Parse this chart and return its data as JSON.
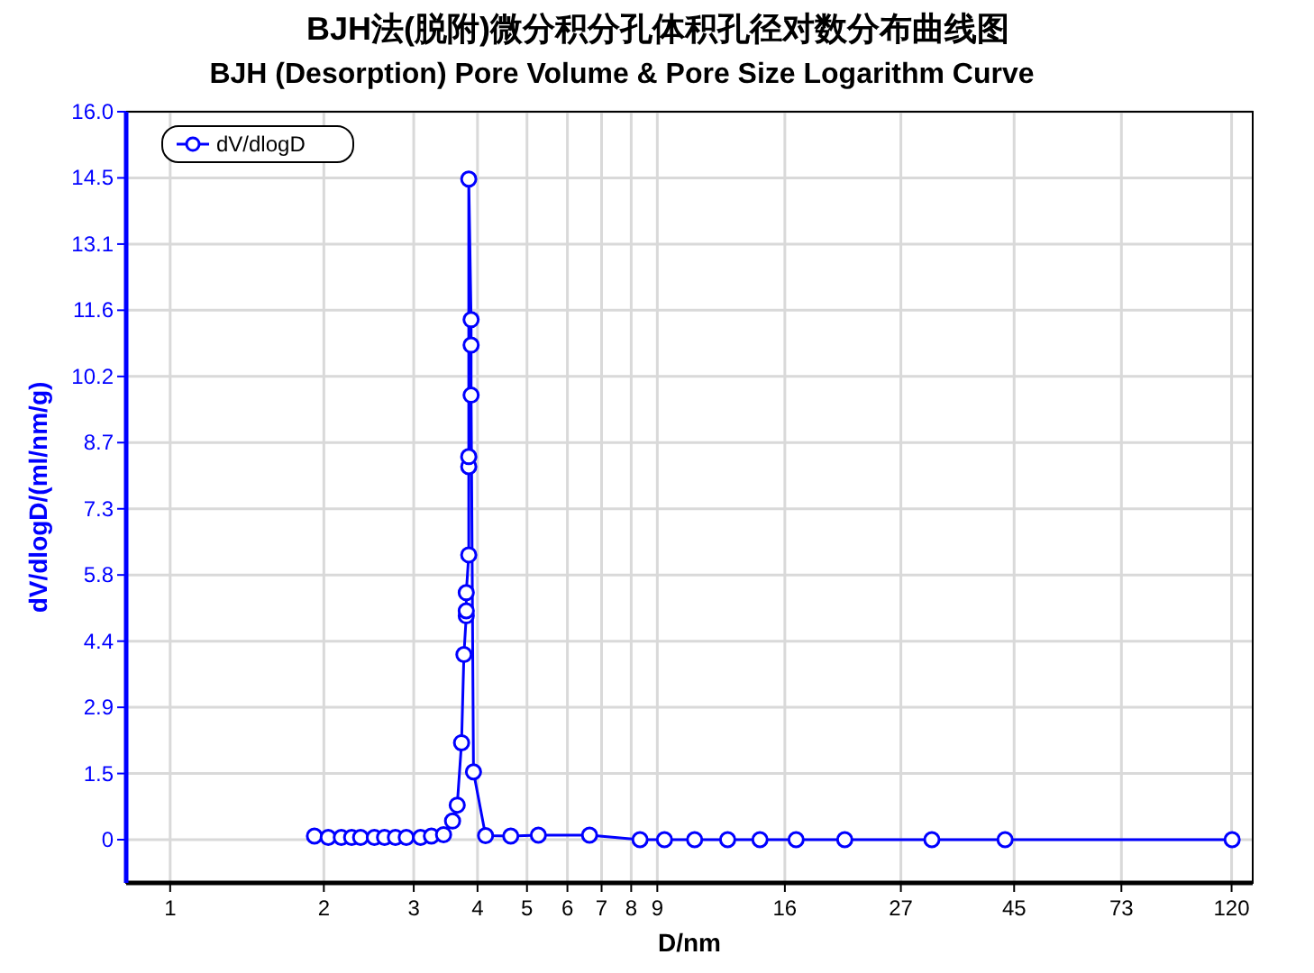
{
  "chart_data": {
    "type": "line",
    "title": "BJH法(脱附)微分积分孔体积孔径对数分布曲线图",
    "subtitle": "BJH (Desorption) Pore Volume & Pore Size Logarithm Curve",
    "xlabel": "D/nm",
    "ylabel": "dV/dlogD/(ml/nm/g)",
    "log": "x",
    "grid": true,
    "legend": "top left",
    "marker": "circle",
    "line_style": "solid",
    "xlim": [
      0.82,
      132
    ],
    "xticks": [
      1,
      2,
      3,
      4,
      5,
      6,
      7,
      8,
      9,
      16,
      27,
      45,
      73,
      120
    ],
    "ylim": [
      -0.95,
      16
    ],
    "yticks": [
      0,
      {
        "value": 1.4545,
        "label": "1.5"
      },
      {
        "value": 2.9091,
        "label": "2.9"
      },
      {
        "value": 4.3636,
        "label": "4.4"
      },
      {
        "value": 5.8182,
        "label": "5.8"
      },
      {
        "value": 7.2727,
        "label": "7.3"
      },
      {
        "value": 8.7273,
        "label": "8.7"
      },
      {
        "value": 10.1818,
        "label": "10.2"
      },
      {
        "value": 11.6364,
        "label": "11.6"
      },
      {
        "value": 13.0909,
        "label": "13.1"
      },
      {
        "value": 14.5455,
        "label": "14.5"
      },
      {
        "value": 16,
        "label": "16.0"
      }
    ],
    "series": [
      {
        "name": "dV/dlogD",
        "color": "#0000ff",
        "x": [
          1.917,
          2.04,
          2.164,
          2.267,
          2.361,
          2.512,
          2.63,
          2.762,
          2.901,
          3.094,
          3.249,
          3.432,
          3.574,
          3.65,
          3.722,
          3.762,
          3.802,
          3.802,
          3.802,
          3.845,
          3.845,
          3.845,
          3.845,
          3.886,
          3.886,
          3.886,
          3.928,
          4.148,
          4.647,
          5.263,
          6.63,
          8.325,
          9.295,
          10.65,
          12.36,
          14.3,
          16.83,
          20.96,
          31.05,
          43.2,
          120.3
        ],
        "values": [
          0.08,
          0.05,
          0.05,
          0.05,
          0.05,
          0.05,
          0.05,
          0.05,
          0.05,
          0.05,
          0.08,
          0.11,
          0.41,
          0.76,
          2.13,
          4.07,
          4.92,
          5.03,
          5.43,
          6.26,
          8.2,
          8.42,
          14.52,
          11.43,
          10.87,
          9.77,
          1.49,
          0.09,
          0.08,
          0.1,
          0.1,
          0.0,
          0.0,
          0.0,
          0.0,
          0.0,
          0.0,
          0.0,
          0.0,
          0.0,
          0.0
        ]
      }
    ]
  }
}
